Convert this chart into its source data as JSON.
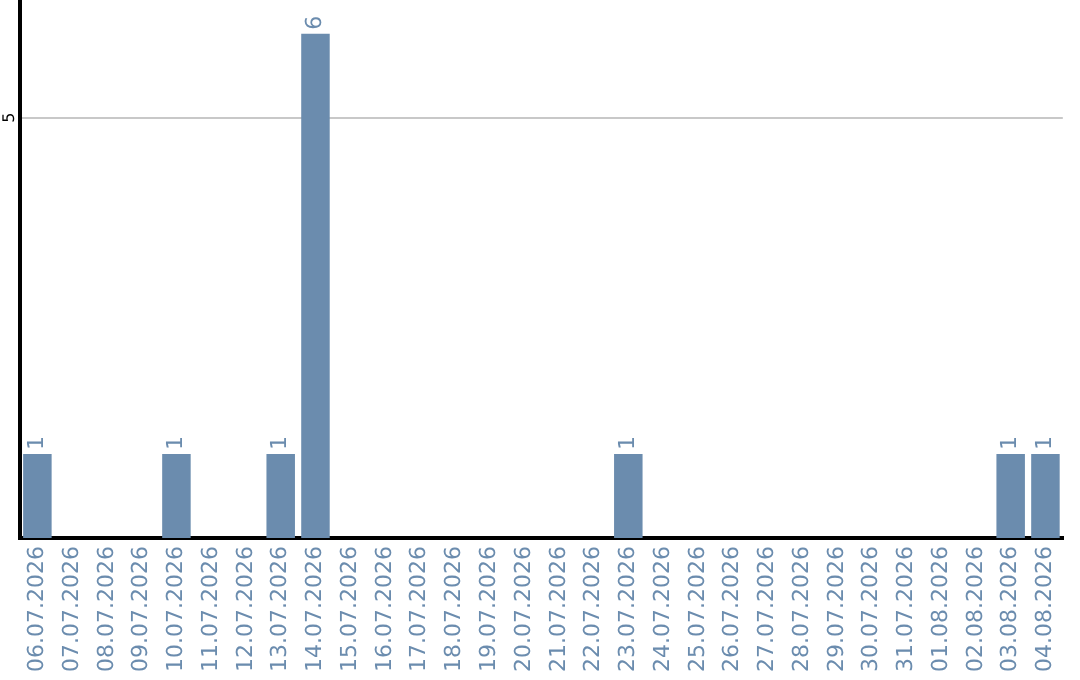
{
  "chart_data": {
    "type": "bar",
    "categories": [
      "06.07.2026",
      "07.07.2026",
      "08.07.2026",
      "09.07.2026",
      "10.07.2026",
      "11.07.2026",
      "12.07.2026",
      "13.07.2026",
      "14.07.2026",
      "15.07.2026",
      "16.07.2026",
      "17.07.2026",
      "18.07.2026",
      "19.07.2026",
      "20.07.2026",
      "21.07.2026",
      "22.07.2026",
      "23.07.2026",
      "24.07.2026",
      "25.07.2026",
      "26.07.2026",
      "27.07.2026",
      "28.07.2026",
      "29.07.2026",
      "30.07.2026",
      "31.07.2026",
      "01.08.2026",
      "02.08.2026",
      "03.08.2026",
      "04.08.2026"
    ],
    "values": [
      1,
      0,
      0,
      0,
      1,
      0,
      0,
      1,
      6,
      0,
      0,
      0,
      0,
      0,
      0,
      0,
      0,
      1,
      0,
      0,
      0,
      0,
      0,
      0,
      0,
      0,
      0,
      0,
      1,
      1
    ],
    "value_labels": [
      "1",
      null,
      null,
      null,
      "1",
      null,
      null,
      "1",
      "6",
      null,
      null,
      null,
      null,
      null,
      null,
      null,
      null,
      "1",
      null,
      null,
      null,
      null,
      null,
      null,
      null,
      null,
      null,
      null,
      "1",
      "1"
    ],
    "color": "#6b8cae",
    "ylim": [
      0,
      6.4
    ],
    "yticks": [
      5
    ],
    "grid": "y"
  }
}
